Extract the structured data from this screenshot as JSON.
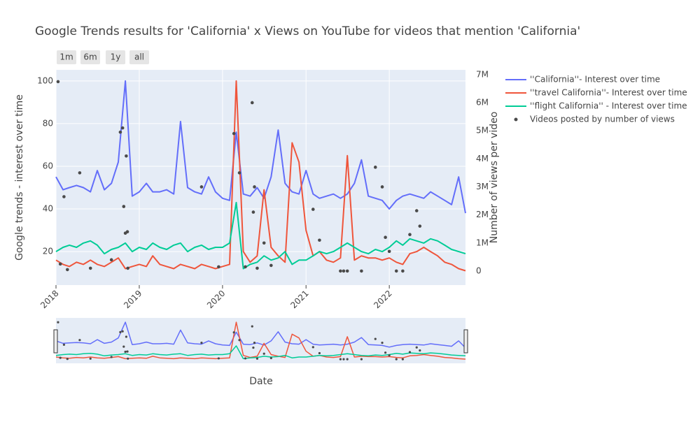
{
  "chart_data": {
    "type": "line",
    "title": "Google Trends results for 'California' x Views on YouTube for videos that mention 'California'",
    "range_buttons": [
      "1m",
      "6m",
      "1y",
      "all"
    ],
    "x_label": "Date",
    "y_label": "Google trends - interest over time",
    "y2_label": "Number of views per video",
    "grid": true,
    "legend": "right",
    "range_slider": true,
    "xlim": [
      "2018-01-01",
      "2022-12-01"
    ],
    "xticks": [
      {
        "value": "2018-01-01",
        "label": "2018"
      },
      {
        "value": "2019-01-01",
        "label": "2019"
      },
      {
        "value": "2020-01-01",
        "label": "2020"
      },
      {
        "value": "2021-01-01",
        "label": "2021"
      },
      {
        "value": "2022-01-01",
        "label": "2022"
      }
    ],
    "ylim": [
      4.3,
      105.2
    ],
    "yticks": [
      20,
      40,
      60,
      80,
      100
    ],
    "y2lim": [
      -500000,
      7170000
    ],
    "y2ticks": [
      {
        "value": 0,
        "label": "0"
      },
      {
        "value": 1000000,
        "label": "1M"
      },
      {
        "value": 2000000,
        "label": "2M"
      },
      {
        "value": 3000000,
        "label": "3M"
      },
      {
        "value": 4000000,
        "label": "4M"
      },
      {
        "value": 5000000,
        "label": "5M"
      },
      {
        "value": 6000000,
        "label": "6M"
      },
      {
        "value": 7000000,
        "label": "7M"
      }
    ],
    "x": [
      "2018-01",
      "2018-02",
      "2018-03",
      "2018-04",
      "2018-05",
      "2018-06",
      "2018-07",
      "2018-08",
      "2018-09",
      "2018-10",
      "2018-11",
      "2018-12",
      "2019-01",
      "2019-02",
      "2019-03",
      "2019-04",
      "2019-05",
      "2019-06",
      "2019-07",
      "2019-08",
      "2019-09",
      "2019-10",
      "2019-11",
      "2019-12",
      "2020-01",
      "2020-02",
      "2020-03",
      "2020-04",
      "2020-05",
      "2020-06",
      "2020-07",
      "2020-08",
      "2020-09",
      "2020-10",
      "2020-11",
      "2020-12",
      "2021-01",
      "2021-02",
      "2021-03",
      "2021-04",
      "2021-05",
      "2021-06",
      "2021-07",
      "2021-08",
      "2021-09",
      "2021-10",
      "2021-11",
      "2021-12",
      "2022-01",
      "2022-02",
      "2022-03",
      "2022-04",
      "2022-05",
      "2022-06",
      "2022-07",
      "2022-08",
      "2022-09",
      "2022-10",
      "2022-11",
      "2022-12"
    ],
    "series": [
      {
        "name": "''California''- Interest over time",
        "color": "#636efa",
        "values": [
          55,
          49,
          50,
          51,
          50,
          48,
          58,
          49,
          52,
          62,
          100,
          46,
          48,
          52,
          48,
          48,
          49,
          47,
          81,
          50,
          48,
          47,
          55,
          48,
          45,
          44,
          76,
          47,
          46,
          50,
          45,
          55,
          77,
          52,
          48,
          47,
          58,
          47,
          45,
          46,
          47,
          45,
          47,
          52,
          63,
          46,
          45,
          44,
          40,
          44,
          46,
          47,
          46,
          45,
          48,
          46,
          44,
          42,
          55,
          38
        ]
      },
      {
        "name": "''travel California''- Interest over time",
        "color": "#ef553b",
        "values": [
          16,
          14,
          13,
          15,
          14,
          16,
          14,
          13,
          15,
          17,
          12,
          13,
          14,
          13,
          18,
          14,
          13,
          12,
          14,
          13,
          12,
          14,
          13,
          12,
          13,
          14,
          100,
          20,
          15,
          18,
          49,
          22,
          18,
          15,
          71,
          62,
          30,
          18,
          20,
          16,
          15,
          17,
          65,
          16,
          18,
          17,
          17,
          16,
          17,
          15,
          14,
          19,
          20,
          22,
          20,
          18,
          15,
          14,
          12,
          11
        ]
      },
      {
        "name": "''flight California'' - Interest over time",
        "color": "#00cc96",
        "values": [
          20,
          22,
          23,
          22,
          24,
          25,
          23,
          19,
          21,
          22,
          24,
          20,
          22,
          21,
          24,
          22,
          21,
          23,
          24,
          20,
          22,
          23,
          21,
          22,
          22,
          24,
          43,
          12,
          14,
          15,
          18,
          16,
          17,
          20,
          14,
          16,
          16,
          18,
          20,
          19,
          20,
          22,
          24,
          22,
          20,
          19,
          21,
          20,
          22,
          25,
          23,
          26,
          25,
          24,
          26,
          25,
          23,
          21,
          20,
          19
        ]
      },
      {
        "name": "Videos posted by number of views",
        "color": "#4a4a4a",
        "mode": "markers",
        "axis": "y2",
        "x": [
          "2018-01-10",
          "2018-01-20",
          "2018-02-05",
          "2018-02-20",
          "2018-04-15",
          "2018-06-01",
          "2018-09-01",
          "2018-10-10",
          "2018-10-20",
          "2018-10-25",
          "2018-11-01",
          "2018-11-05",
          "2018-11-10",
          "2018-11-12",
          "2019-10-01",
          "2019-12-15",
          "2020-02-20",
          "2020-03-15",
          "2020-04-10",
          "2020-05-10",
          "2020-05-15",
          "2020-05-20",
          "2020-06-01",
          "2020-07-01",
          "2020-08-01",
          "2021-02-01",
          "2021-03-01",
          "2021-06-01",
          "2021-06-15",
          "2021-07-01",
          "2021-09-01",
          "2021-11-01",
          "2021-12-01",
          "2021-12-15",
          "2022-01-01",
          "2022-02-01",
          "2022-03-01",
          "2022-05-01",
          "2022-05-15",
          "2022-04-01"
        ],
        "values": [
          6750000,
          250000,
          2650000,
          50000,
          3500000,
          100000,
          400000,
          4950000,
          5100000,
          2300000,
          1350000,
          4100000,
          1400000,
          100000,
          3000000,
          150000,
          4900000,
          3500000,
          150000,
          6000000,
          2100000,
          3000000,
          100000,
          1000000,
          200000,
          2200000,
          1100000,
          0,
          0,
          0,
          0,
          3700000,
          3000000,
          1200000,
          700000,
          0,
          0,
          2150000,
          1600000,
          1300000
        ]
      }
    ]
  }
}
